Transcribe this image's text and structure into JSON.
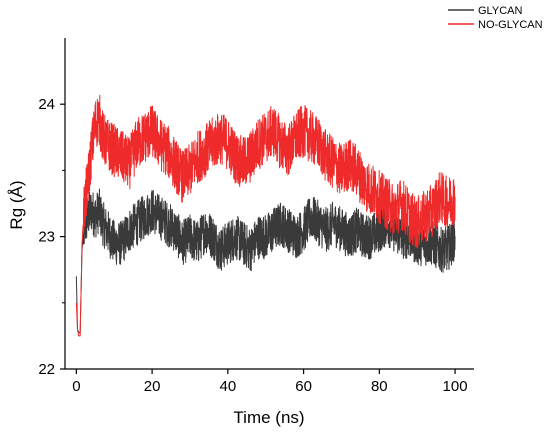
{
  "chart_data": {
    "type": "line",
    "title": "",
    "xlabel": "Time (ns)",
    "ylabel": "Rg (Å)",
    "xlim": [
      -3,
      105
    ],
    "ylim": [
      22,
      24.5
    ],
    "xticks": [
      0,
      20,
      40,
      60,
      80,
      100
    ],
    "yticks": [
      22,
      23,
      24
    ],
    "grid": false,
    "legend": "top-right",
    "series": [
      {
        "name": "GLYCAN",
        "color": "#3a3a3a",
        "x": [
          0,
          0.3,
          0.6,
          1.0,
          1.5,
          2,
          3,
          4,
          5,
          6,
          7,
          8,
          10,
          12,
          14,
          16,
          18,
          20,
          22,
          24,
          26,
          28,
          30,
          32,
          34,
          36,
          38,
          40,
          42,
          44,
          46,
          48,
          50,
          52,
          54,
          56,
          58,
          60,
          62,
          64,
          66,
          68,
          70,
          72,
          74,
          76,
          78,
          80,
          82,
          84,
          86,
          88,
          90,
          92,
          94,
          96,
          98,
          100
        ],
        "y": [
          22.7,
          22.3,
          22.28,
          22.27,
          22.9,
          23.05,
          23.15,
          23.2,
          23.15,
          23.2,
          23.1,
          23.05,
          22.95,
          22.95,
          23.05,
          23.1,
          23.15,
          23.2,
          23.15,
          23.1,
          23.05,
          22.95,
          23.0,
          22.95,
          23.05,
          23.0,
          22.9,
          22.95,
          23.0,
          22.95,
          22.9,
          23.0,
          23.0,
          23.05,
          23.1,
          23.05,
          23.0,
          23.05,
          23.15,
          23.1,
          23.05,
          23.1,
          23.05,
          23.0,
          23.05,
          23.0,
          23.0,
          23.05,
          23.1,
          23.05,
          23.0,
          23.0,
          22.95,
          22.95,
          22.95,
          22.9,
          22.9,
          23.0
        ]
      },
      {
        "name": "NO-GLYCAN",
        "color": "#ee2a2a",
        "x": [
          0,
          0.3,
          0.6,
          1.0,
          1.5,
          2,
          3,
          4,
          5,
          6,
          7,
          8,
          10,
          12,
          14,
          16,
          18,
          20,
          22,
          24,
          26,
          28,
          30,
          32,
          34,
          36,
          38,
          40,
          42,
          44,
          46,
          48,
          50,
          52,
          54,
          56,
          58,
          60,
          62,
          64,
          66,
          68,
          70,
          72,
          74,
          76,
          78,
          80,
          82,
          84,
          86,
          88,
          90,
          92,
          94,
          96,
          98,
          100
        ],
        "y": [
          22.5,
          22.3,
          22.25,
          22.25,
          22.95,
          23.2,
          23.4,
          23.65,
          23.85,
          23.9,
          23.75,
          23.7,
          23.65,
          23.6,
          23.55,
          23.7,
          23.75,
          23.8,
          23.7,
          23.65,
          23.55,
          23.45,
          23.5,
          23.6,
          23.65,
          23.7,
          23.75,
          23.7,
          23.6,
          23.55,
          23.6,
          23.7,
          23.75,
          23.8,
          23.7,
          23.65,
          23.75,
          23.8,
          23.75,
          23.7,
          23.6,
          23.55,
          23.5,
          23.55,
          23.5,
          23.4,
          23.35,
          23.3,
          23.25,
          23.2,
          23.25,
          23.15,
          23.1,
          23.15,
          23.2,
          23.3,
          23.25,
          23.3
        ]
      }
    ]
  }
}
